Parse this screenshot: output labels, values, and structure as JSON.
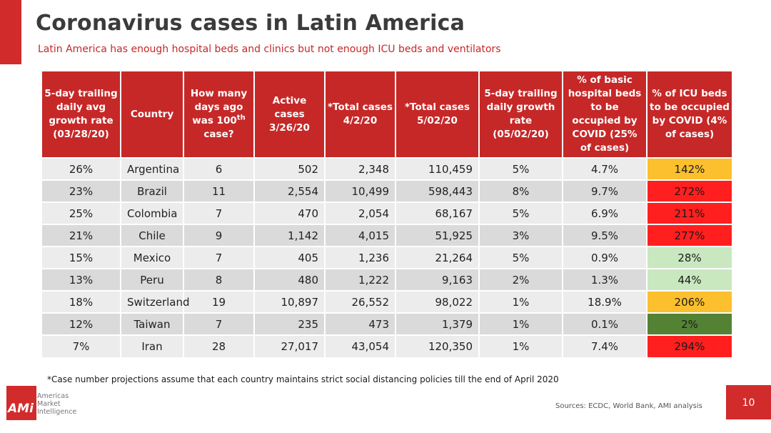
{
  "slide": {
    "title": "Coronavirus cases in Latin America",
    "subtitle": "Latin America has enough hospital beds and clinics but not enough ICU beds and ventilators",
    "footnote": "*Case number projections assume that each country maintains strict social distancing policies till the end of April 2020",
    "sources": "Sources: ECDC, World Bank, AMI analysis",
    "page_number": "10",
    "logo": {
      "mark": "AMi",
      "line1": "Americas",
      "line2": "Market",
      "line3": "Intelligence"
    },
    "colors": {
      "brand_red": "#d12b2b",
      "header_red": "#c62828",
      "icu_red": "#ff1f1f",
      "icu_orange": "#fcbf2e",
      "icu_light_green": "#c9e8c0",
      "icu_dark_green": "#548235"
    }
  },
  "table": {
    "headers": [
      "5-day trailing daily avg growth rate (03/28/20)",
      "Country",
      "How many days ago was 100th case?",
      "Active cases 3/26/20",
      "*Total cases 4/2/20",
      "*Total cases 5/02/20",
      "5-day trailing daily growth rate (05/02/20)",
      "% of basic hospital beds to be occupied by COVID (25% of cases)",
      "% of ICU beds to be occupied by COVID (4% of cases)"
    ],
    "header_parts": {
      "days_ago_pre": "How many days ago was 100",
      "days_ago_sup": "th",
      "days_ago_post": "case?"
    },
    "rows": [
      {
        "growth_0328": "26%",
        "country": "Argentina",
        "days_ago": "6",
        "active_0326": "502",
        "total_0402": "2,348",
        "total_0502": "110,459",
        "growth_0502": "5%",
        "hospital_beds": "4.7%",
        "icu_beds": "142%",
        "icu_color": "#fcbf2e",
        "icu_text_color": "#1a1a1a"
      },
      {
        "growth_0328": "23%",
        "country": "Brazil",
        "days_ago": "11",
        "active_0326": "2,554",
        "total_0402": "10,499",
        "total_0502": "598,443",
        "growth_0502": "8%",
        "hospital_beds": "9.7%",
        "icu_beds": "272%",
        "icu_color": "#ff1f1f",
        "icu_text_color": "#1a1a1a"
      },
      {
        "growth_0328": "25%",
        "country": "Colombia",
        "days_ago": "7",
        "active_0326": "470",
        "total_0402": "2,054",
        "total_0502": "68,167",
        "growth_0502": "5%",
        "hospital_beds": "6.9%",
        "icu_beds": "211%",
        "icu_color": "#ff1f1f",
        "icu_text_color": "#1a1a1a"
      },
      {
        "growth_0328": "21%",
        "country": "Chile",
        "days_ago": "9",
        "active_0326": "1,142",
        "total_0402": "4,015",
        "total_0502": "51,925",
        "growth_0502": "3%",
        "hospital_beds": "9.5%",
        "icu_beds": "277%",
        "icu_color": "#ff1f1f",
        "icu_text_color": "#1a1a1a"
      },
      {
        "growth_0328": "15%",
        "country": "Mexico",
        "days_ago": "7",
        "active_0326": "405",
        "total_0402": "1,236",
        "total_0502": "21,264",
        "growth_0502": "5%",
        "hospital_beds": "0.9%",
        "icu_beds": "28%",
        "icu_color": "#c9e8c0",
        "icu_text_color": "#1a1a1a"
      },
      {
        "growth_0328": "13%",
        "country": "Peru",
        "days_ago": "8",
        "active_0326": "480",
        "total_0402": "1,222",
        "total_0502": "9,163",
        "growth_0502": "2%",
        "hospital_beds": "1.3%",
        "icu_beds": "44%",
        "icu_color": "#c9e8c0",
        "icu_text_color": "#1a1a1a"
      },
      {
        "growth_0328": "18%",
        "country": "Switzerland",
        "days_ago": "19",
        "active_0326": "10,897",
        "total_0402": "26,552",
        "total_0502": "98,022",
        "growth_0502": "1%",
        "hospital_beds": "18.9%",
        "icu_beds": "206%",
        "icu_color": "#fcbf2e",
        "icu_text_color": "#1a1a1a"
      },
      {
        "growth_0328": "12%",
        "country": "Taiwan",
        "days_ago": "7",
        "active_0326": "235",
        "total_0402": "473",
        "total_0502": "1,379",
        "growth_0502": "1%",
        "hospital_beds": "0.1%",
        "icu_beds": "2%",
        "icu_color": "#548235",
        "icu_text_color": "#1a1a1a"
      },
      {
        "growth_0328": "7%",
        "country": "Iran",
        "days_ago": "28",
        "active_0326": "27,017",
        "total_0402": "43,054",
        "total_0502": "120,350",
        "growth_0502": "1%",
        "hospital_beds": "7.4%",
        "icu_beds": "294%",
        "icu_color": "#ff1f1f",
        "icu_text_color": "#1a1a1a"
      }
    ]
  }
}
